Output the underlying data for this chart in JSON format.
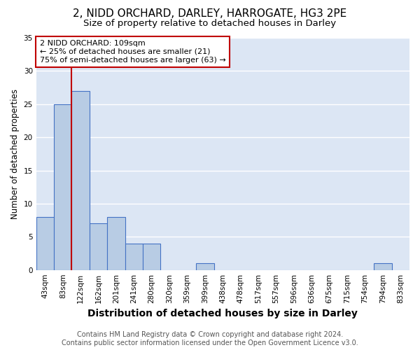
{
  "title": "2, NIDD ORCHARD, DARLEY, HARROGATE, HG3 2PE",
  "subtitle": "Size of property relative to detached houses in Darley",
  "xlabel": "Distribution of detached houses by size in Darley",
  "ylabel": "Number of detached properties",
  "categories": [
    "43sqm",
    "83sqm",
    "122sqm",
    "162sqm",
    "201sqm",
    "241sqm",
    "280sqm",
    "320sqm",
    "359sqm",
    "399sqm",
    "438sqm",
    "478sqm",
    "517sqm",
    "557sqm",
    "596sqm",
    "636sqm",
    "675sqm",
    "715sqm",
    "754sqm",
    "794sqm",
    "833sqm"
  ],
  "values": [
    8,
    25,
    27,
    7,
    8,
    4,
    4,
    0,
    0,
    1,
    0,
    0,
    0,
    0,
    0,
    0,
    0,
    0,
    0,
    1,
    0
  ],
  "bar_color": "#b8cce4",
  "bar_edge_color": "#4472c4",
  "bar_edge_width": 0.8,
  "vline_x_index": 1.5,
  "vline_color": "#c00000",
  "annotation_line1": "2 NIDD ORCHARD: 109sqm",
  "annotation_line2": "← 25% of detached houses are smaller (21)",
  "annotation_line3": "75% of semi-detached houses are larger (63) →",
  "annotation_box_color": "#c00000",
  "annotation_box_bg": "#ffffff",
  "ylim": [
    0,
    35
  ],
  "yticks": [
    0,
    5,
    10,
    15,
    20,
    25,
    30,
    35
  ],
  "bg_color": "#dce6f4",
  "grid_color": "#ffffff",
  "footer_line1": "Contains HM Land Registry data © Crown copyright and database right 2024.",
  "footer_line2": "Contains public sector information licensed under the Open Government Licence v3.0.",
  "title_fontsize": 11,
  "subtitle_fontsize": 9.5,
  "xlabel_fontsize": 10,
  "ylabel_fontsize": 8.5,
  "tick_fontsize": 7.5,
  "annotation_fontsize": 8,
  "footer_fontsize": 7
}
